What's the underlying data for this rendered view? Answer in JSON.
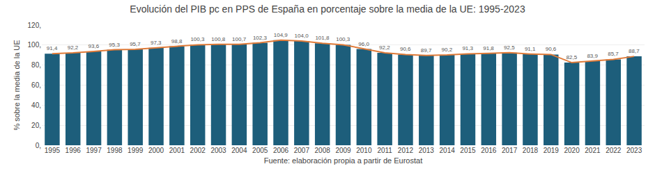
{
  "chart_data": {
    "type": "bar",
    "title": "Evolución del PIB pc en PPS de España en porcentaje sobre la media de la UE: 1995-2023",
    "x_label": "Fuente: elaboración propia a partir de Eurostat",
    "y_label": "% sobre la media de la UE",
    "categories": [
      "1995",
      "1996",
      "1997",
      "1998",
      "1999",
      "2000",
      "2001",
      "2002",
      "2003",
      "2004",
      "2005",
      "2006",
      "2007",
      "2008",
      "2009",
      "2010",
      "2011",
      "2012",
      "2013",
      "2014",
      "2015",
      "2016",
      "2017",
      "2018",
      "2019",
      "2020",
      "2021",
      "2022",
      "2023"
    ],
    "series": [
      {
        "type": "bar",
        "color": "#1d5e7b",
        "values": [
          91.4,
          92.2,
          93.6,
          95.3,
          95.7,
          97.3,
          98.8,
          100.3,
          100.8,
          100.7,
          102.3,
          104.9,
          104.0,
          101.8,
          100.3,
          96.0,
          92.2,
          90.6,
          89.7,
          90.2,
          91.3,
          91.8,
          92.5,
          91.1,
          90.6,
          82.5,
          83.9,
          85.7,
          88.7
        ],
        "value_labels": [
          "91,4",
          "92,2",
          "93,6",
          "95,3",
          "95,7",
          "97,3",
          "98,8",
          "100,3",
          "100,8",
          "100,7",
          "102,3",
          "104,9",
          "104,0",
          "101,8",
          "100,3",
          "96,0",
          "92,2",
          "90,6",
          "89,7",
          "90,2",
          "91,3",
          "91,8",
          "92,5",
          "91,1",
          "90,6",
          "82,5",
          "83,9",
          "85,7",
          "88,7"
        ],
        "data_labels": true
      },
      {
        "type": "line",
        "color": "#e07b39",
        "values": [
          91.4,
          92.2,
          93.6,
          95.3,
          95.7,
          97.3,
          98.8,
          100.3,
          100.8,
          100.7,
          102.3,
          104.9,
          104.0,
          101.8,
          100.3,
          96.0,
          92.2,
          90.6,
          89.7,
          90.2,
          91.3,
          91.8,
          92.5,
          91.1,
          90.6,
          82.5,
          83.9,
          85.7,
          88.7
        ]
      }
    ],
    "ylim": [
      0,
      120
    ],
    "yticks": [
      {
        "value": 0,
        "label": "0,"
      },
      {
        "value": 20,
        "label": "20,"
      },
      {
        "value": 40,
        "label": "40,"
      },
      {
        "value": 60,
        "label": "60,"
      },
      {
        "value": 80,
        "label": "80,"
      },
      {
        "value": 100,
        "label": "100,"
      },
      {
        "value": 120,
        "label": "120,"
      }
    ],
    "grid": true
  }
}
